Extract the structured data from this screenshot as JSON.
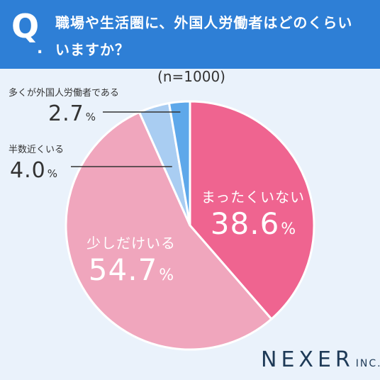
{
  "question": {
    "mark": "Q",
    "dot": ".",
    "line1": "職場や生活圏に、外国人労働者はどのくらい",
    "line2": "いますか？"
  },
  "sample": "(n=1000)",
  "chart_data": {
    "type": "pie",
    "start_angle_deg": 0,
    "direction": "clockwise",
    "slices": [
      {
        "label": "まったくいない",
        "value": 38.6,
        "color": "#ef6490",
        "label_position": "inside"
      },
      {
        "label": "少しだけいる",
        "value": 54.7,
        "color": "#f0a6bd",
        "label_position": "inside"
      },
      {
        "label": "半数近くいる",
        "value": 4.0,
        "color": "#a9cdf2",
        "label_position": "outside"
      },
      {
        "label": "多くが外国人労働者である",
        "value": 2.7,
        "color": "#5ea8ea",
        "label_position": "outside"
      }
    ],
    "percent_sign": "%"
  },
  "logo": {
    "name": "NEXER",
    "suffix": "INC."
  }
}
